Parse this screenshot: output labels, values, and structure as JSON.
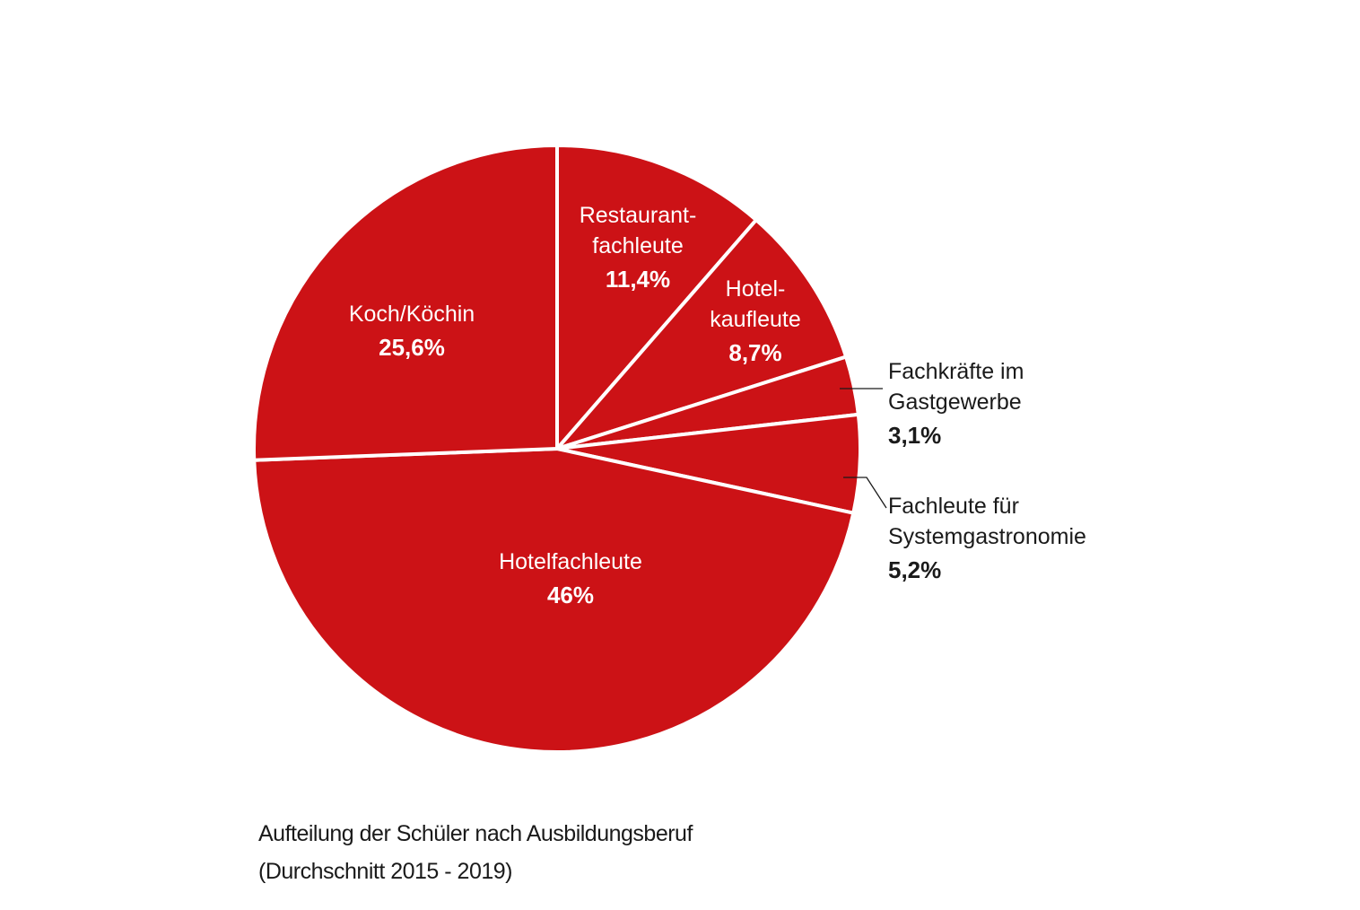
{
  "chart_data": {
    "type": "pie",
    "slices": [
      {
        "name": "Hotelfachleute",
        "label_lines": [
          "Hotelfachleute"
        ],
        "value_label": "46%",
        "value": 46.0
      },
      {
        "name": "Koch/Köchin",
        "label_lines": [
          "Koch/Köchin"
        ],
        "value_label": "25,6%",
        "value": 25.6
      },
      {
        "name": "Restaurantfachleute",
        "label_lines": [
          "Restaurant-",
          "fachleute"
        ],
        "value_label": "11,4%",
        "value": 11.4
      },
      {
        "name": "Hotelkaufleute",
        "label_lines": [
          "Hotel-",
          "kaufleute"
        ],
        "value_label": "8,7%",
        "value": 8.7
      },
      {
        "name": "Fachkräfte im Gastgewerbe",
        "label_lines": [
          "Fachkräfte im",
          "Gastgewerbe"
        ],
        "value_label": "3,1%",
        "value": 3.1
      },
      {
        "name": "Fachleute für Systemgastronomie",
        "label_lines": [
          "Fachleute für",
          "Systemgastronomie"
        ],
        "value_label": "5,2%",
        "value": 5.2
      }
    ],
    "colors": {
      "slice": "#cc1216",
      "separator": "#ffffff",
      "leader": "#1a1a1a"
    },
    "start_angle_deg": 0,
    "direction": "clockwise"
  },
  "caption": {
    "line1": "Aufteilung der Schüler nach Ausbildungsberuf",
    "line2": "(Durchschnitt 2015 - 2019)"
  }
}
